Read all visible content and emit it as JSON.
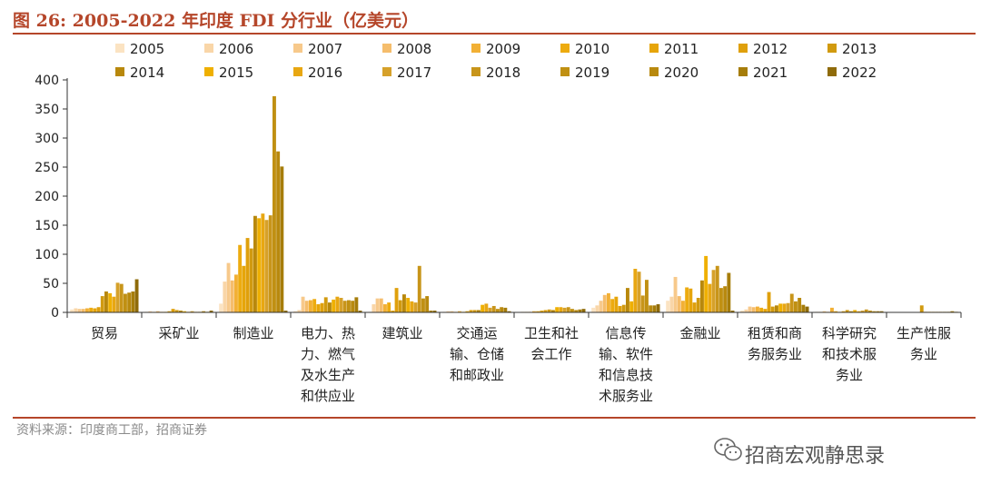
{
  "figure": {
    "title": "图 26:  2005-2022 年印度 FDI 分行业（亿美元）",
    "source": "资料来源：印度商工部，招商证券",
    "watermark": "招商宏观静思录",
    "watermark_icon": "wechat-icon"
  },
  "colors": {
    "accent": "#b5462a",
    "series": [
      "#fbe3c2",
      "#f9d6a8",
      "#f7c98b",
      "#f5bd6c",
      "#f2b035",
      "#edab0f",
      "#e6a50a",
      "#dfa00c",
      "#d19a0f",
      "#b8880c",
      "#efb000",
      "#e8a712",
      "#d6a12a",
      "#c8951a",
      "#c09012",
      "#b8890e",
      "#a67d0a",
      "#8f6b0a"
    ]
  },
  "chart_data": {
    "type": "bar",
    "title": "2005-2022 年印度 FDI 分行业（亿美元）",
    "ylabel": "",
    "xlabel": "",
    "ylim": [
      0,
      400
    ],
    "yticks": [
      0,
      50,
      100,
      150,
      200,
      250,
      300,
      350,
      400
    ],
    "legend_position": "top",
    "categories": [
      [
        "贸易"
      ],
      [
        "采矿业"
      ],
      [
        "制造业"
      ],
      [
        "电力、热",
        "力、燃气",
        "及水生产",
        "和供应业"
      ],
      [
        "建筑业"
      ],
      [
        "交通运",
        "输、仓储",
        "和邮政业"
      ],
      [
        "卫生和社",
        "会工作"
      ],
      [
        "信息传",
        "输、软件",
        "和信息技",
        "术服务业"
      ],
      [
        "金融业"
      ],
      [
        "租赁和商",
        "务服务业"
      ],
      [
        "科学研究",
        "和技术服",
        "务业"
      ],
      [
        "生产性服",
        "务业"
      ]
    ],
    "series": [
      {
        "name": "2005",
        "values": [
          5,
          1,
          15,
          2,
          1,
          1,
          0,
          8,
          20,
          3,
          1,
          0
        ]
      },
      {
        "name": "2006",
        "values": [
          7,
          2,
          53,
          4,
          14,
          2,
          1,
          12,
          27,
          5,
          1,
          0
        ]
      },
      {
        "name": "2007",
        "values": [
          6,
          1,
          85,
          27,
          24,
          2,
          1,
          20,
          61,
          10,
          2,
          0
        ]
      },
      {
        "name": "2008",
        "values": [
          6,
          2,
          55,
          20,
          24,
          1,
          1,
          30,
          28,
          9,
          1,
          0
        ]
      },
      {
        "name": "2009",
        "values": [
          7,
          1,
          65,
          21,
          14,
          2,
          2,
          33,
          20,
          10,
          8,
          0
        ]
      },
      {
        "name": "2010",
        "values": [
          8,
          1,
          116,
          23,
          17,
          1,
          2,
          23,
          43,
          8,
          2,
          0
        ]
      },
      {
        "name": "2011",
        "values": [
          7,
          2,
          80,
          14,
          3,
          2,
          3,
          27,
          41,
          6,
          1,
          0
        ]
      },
      {
        "name": "2012",
        "values": [
          9,
          6,
          128,
          16,
          42,
          4,
          4,
          11,
          17,
          35,
          2,
          0
        ]
      },
      {
        "name": "2013",
        "values": [
          28,
          4,
          110,
          26,
          21,
          4,
          5,
          13,
          25,
          10,
          4,
          12
        ]
      },
      {
        "name": "2014",
        "values": [
          36,
          3,
          166,
          17,
          31,
          4,
          4,
          42,
          55,
          12,
          2,
          1
        ]
      },
      {
        "name": "2015",
        "values": [
          33,
          2,
          162,
          22,
          25,
          13,
          9,
          19,
          97,
          15,
          4,
          1
        ]
      },
      {
        "name": "2016",
        "values": [
          27,
          1,
          170,
          27,
          19,
          15,
          9,
          75,
          49,
          15,
          2,
          1
        ]
      },
      {
        "name": "2017",
        "values": [
          51,
          2,
          159,
          25,
          17,
          8,
          8,
          70,
          73,
          16,
          3,
          1
        ]
      },
      {
        "name": "2018",
        "values": [
          49,
          1,
          167,
          20,
          80,
          11,
          9,
          29,
          80,
          32,
          5,
          1
        ]
      },
      {
        "name": "2019",
        "values": [
          32,
          1,
          372,
          21,
          24,
          6,
          6,
          56,
          42,
          19,
          3,
          1
        ]
      },
      {
        "name": "2020",
        "values": [
          34,
          2,
          277,
          20,
          28,
          9,
          4,
          12,
          45,
          25,
          2,
          1
        ]
      },
      {
        "name": "2021",
        "values": [
          36,
          1,
          251,
          26,
          3,
          8,
          5,
          12,
          68,
          13,
          2,
          2
        ]
      },
      {
        "name": "2022",
        "values": [
          57,
          3,
          3,
          3,
          3,
          2,
          6,
          14,
          3,
          10,
          2,
          1
        ]
      }
    ]
  }
}
